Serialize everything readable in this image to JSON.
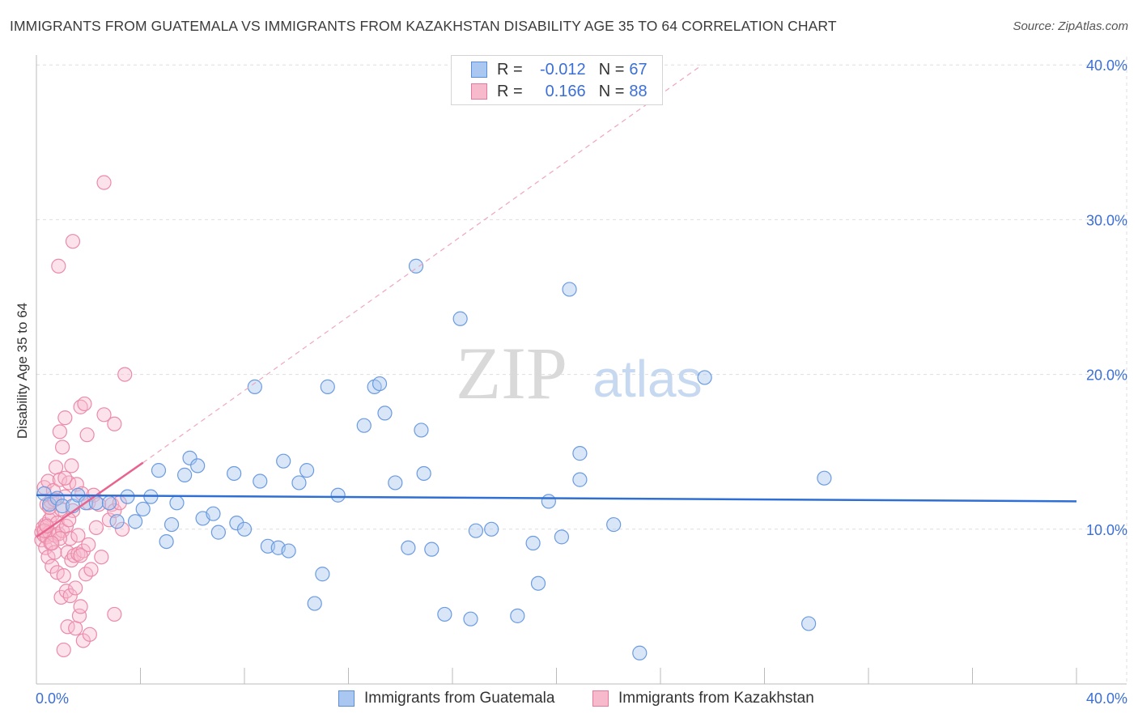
{
  "title": "IMMIGRANTS FROM GUATEMALA VS IMMIGRANTS FROM KAZAKHSTAN DISABILITY AGE 35 TO 64 CORRELATION CHART",
  "source": "Source: ZipAtlas.com",
  "watermark": {
    "zip": "ZIP",
    "atlas": "atlas"
  },
  "legend": {
    "r_label": "R =",
    "n_label": "N =",
    "rows": [
      {
        "name": "Immigrants from Guatemala",
        "r": "-0.012",
        "n": "67",
        "fill": "#a9c7f0",
        "stroke": "#5a8fd8"
      },
      {
        "name": "Immigrants from Kazakhstan",
        "r": "0.166",
        "n": "88",
        "fill": "#f7b9cc",
        "stroke": "#e5789c"
      }
    ]
  },
  "chart_data": {
    "type": "scatter",
    "title": "IMMIGRANTS FROM GUATEMALA VS IMMIGRANTS FROM KAZAKHSTAN DISABILITY AGE 35 TO 64 CORRELATION CHART",
    "xlabel": "",
    "ylabel": "Disability Age 35 to 64",
    "xlim": [
      0,
      40
    ],
    "ylim": [
      0,
      40
    ],
    "x_tick_labels": [
      "0.0%",
      "40.0%"
    ],
    "y_ticks": [
      10,
      20,
      30,
      40
    ],
    "y_tick_labels": [
      "10.0%",
      "20.0%",
      "30.0%",
      "40.0%"
    ],
    "grid": true,
    "legend_position": "top-center",
    "colors": {
      "guatemala": "#5a8fd8",
      "kazakhstan": "#e5789c",
      "trend_blue": "#2f6fd4",
      "trend_pink": "#e8648f"
    },
    "series": [
      {
        "name": "Immigrants from Guatemala",
        "color": "#5a8fd8",
        "trend": {
          "x": [
            0,
            40
          ],
          "y": [
            12.2,
            11.8
          ]
        },
        "points": [
          [
            0.3,
            12.3
          ],
          [
            0.5,
            11.6
          ],
          [
            0.8,
            12.0
          ],
          [
            1.0,
            11.5
          ],
          [
            1.4,
            11.5
          ],
          [
            1.6,
            12.2
          ],
          [
            1.9,
            11.7
          ],
          [
            2.3,
            11.7
          ],
          [
            2.8,
            11.7
          ],
          [
            3.1,
            10.5
          ],
          [
            3.5,
            12.1
          ],
          [
            3.8,
            10.5
          ],
          [
            4.1,
            11.3
          ],
          [
            4.4,
            12.1
          ],
          [
            4.7,
            13.8
          ],
          [
            5.0,
            9.2
          ],
          [
            5.2,
            10.3
          ],
          [
            5.7,
            13.5
          ],
          [
            5.9,
            14.6
          ],
          [
            6.2,
            14.1
          ],
          [
            6.4,
            10.7
          ],
          [
            6.8,
            11.0
          ],
          [
            7.0,
            9.8
          ],
          [
            7.6,
            13.6
          ],
          [
            7.7,
            10.4
          ],
          [
            8.0,
            10.0
          ],
          [
            8.4,
            19.2
          ],
          [
            8.6,
            13.1
          ],
          [
            8.9,
            8.9
          ],
          [
            9.3,
            8.8
          ],
          [
            9.5,
            14.4
          ],
          [
            9.7,
            8.6
          ],
          [
            10.1,
            13.0
          ],
          [
            10.4,
            13.8
          ],
          [
            10.7,
            5.2
          ],
          [
            11.0,
            7.1
          ],
          [
            11.2,
            19.2
          ],
          [
            11.6,
            12.2
          ],
          [
            12.6,
            16.7
          ],
          [
            13.0,
            19.2
          ],
          [
            13.2,
            19.4
          ],
          [
            13.4,
            17.5
          ],
          [
            13.8,
            13.0
          ],
          [
            14.3,
            8.8
          ],
          [
            14.6,
            27.0
          ],
          [
            14.8,
            16.4
          ],
          [
            14.9,
            13.6
          ],
          [
            15.2,
            8.7
          ],
          [
            15.7,
            4.5
          ],
          [
            16.3,
            23.6
          ],
          [
            16.7,
            4.2
          ],
          [
            16.9,
            9.9
          ],
          [
            17.5,
            10.0
          ],
          [
            18.5,
            4.4
          ],
          [
            19.1,
            9.1
          ],
          [
            19.3,
            6.5
          ],
          [
            19.7,
            11.8
          ],
          [
            20.2,
            9.5
          ],
          [
            20.5,
            25.5
          ],
          [
            20.9,
            14.9
          ],
          [
            20.9,
            13.2
          ],
          [
            22.2,
            10.3
          ],
          [
            23.2,
            2.0
          ],
          [
            25.7,
            19.8
          ],
          [
            29.7,
            3.9
          ],
          [
            30.3,
            13.3
          ],
          [
            5.4,
            11.7
          ]
        ]
      },
      {
        "name": "Immigrants from Kazakhstan",
        "color": "#e5789c",
        "trend": {
          "x": [
            0,
            4.1
          ],
          "y": [
            9.5,
            14.3
          ]
        },
        "trend_extension": {
          "x": [
            4.1,
            25.6
          ],
          "y": [
            14.3,
            40.0
          ]
        },
        "points": [
          [
            0.2,
            9.8
          ],
          [
            0.2,
            9.3
          ],
          [
            0.25,
            10.1
          ],
          [
            0.3,
            12.7
          ],
          [
            0.3,
            9.6
          ],
          [
            0.35,
            8.8
          ],
          [
            0.35,
            10.3
          ],
          [
            0.4,
            11.6
          ],
          [
            0.4,
            9.5
          ],
          [
            0.45,
            13.1
          ],
          [
            0.45,
            8.2
          ],
          [
            0.5,
            10.6
          ],
          [
            0.5,
            9.8
          ],
          [
            0.55,
            11.8
          ],
          [
            0.55,
            9.1
          ],
          [
            0.6,
            10.9
          ],
          [
            0.6,
            7.6
          ],
          [
            0.65,
            12.5
          ],
          [
            0.7,
            9.6
          ],
          [
            0.7,
            8.5
          ],
          [
            0.75,
            14.0
          ],
          [
            0.8,
            10.4
          ],
          [
            0.8,
            7.2
          ],
          [
            0.85,
            9.7
          ],
          [
            0.85,
            27.0
          ],
          [
            0.9,
            13.2
          ],
          [
            0.9,
            16.3
          ],
          [
            0.95,
            11.3
          ],
          [
            0.95,
            5.6
          ],
          [
            1.0,
            15.3
          ],
          [
            1.0,
            9.9
          ],
          [
            1.05,
            7.0
          ],
          [
            1.05,
            2.2
          ],
          [
            1.1,
            12.1
          ],
          [
            1.1,
            17.2
          ],
          [
            1.15,
            10.2
          ],
          [
            1.15,
            6.0
          ],
          [
            1.2,
            8.5
          ],
          [
            1.2,
            3.7
          ],
          [
            1.25,
            13.0
          ],
          [
            1.3,
            9.4
          ],
          [
            1.3,
            5.7
          ],
          [
            1.35,
            14.1
          ],
          [
            1.35,
            8.0
          ],
          [
            1.4,
            11.2
          ],
          [
            1.4,
            28.6
          ],
          [
            1.45,
            8.3
          ],
          [
            1.5,
            6.2
          ],
          [
            1.5,
            3.6
          ],
          [
            1.55,
            12.9
          ],
          [
            1.6,
            9.6
          ],
          [
            1.6,
            8.4
          ],
          [
            1.65,
            4.4
          ],
          [
            1.7,
            17.9
          ],
          [
            1.7,
            5.0
          ],
          [
            1.75,
            12.3
          ],
          [
            1.8,
            8.6
          ],
          [
            1.8,
            2.8
          ],
          [
            1.85,
            18.1
          ],
          [
            1.9,
            7.1
          ],
          [
            1.95,
            16.1
          ],
          [
            2.0,
            9.0
          ],
          [
            2.0,
            11.7
          ],
          [
            2.05,
            3.2
          ],
          [
            2.1,
            7.4
          ],
          [
            2.2,
            12.2
          ],
          [
            2.3,
            10.1
          ],
          [
            2.4,
            11.6
          ],
          [
            2.5,
            8.2
          ],
          [
            2.6,
            17.4
          ],
          [
            2.8,
            10.6
          ],
          [
            2.9,
            11.6
          ],
          [
            3.0,
            16.8
          ],
          [
            3.0,
            11.2
          ],
          [
            3.0,
            4.5
          ],
          [
            3.2,
            11.7
          ],
          [
            3.3,
            10.0
          ],
          [
            3.4,
            20.0
          ],
          [
            2.6,
            32.4
          ],
          [
            0.5,
            11.4
          ],
          [
            0.7,
            11.9
          ],
          [
            0.9,
            9.4
          ],
          [
            1.1,
            13.3
          ],
          [
            0.3,
            9.9
          ],
          [
            0.6,
            9.1
          ],
          [
            1.25,
            10.6
          ],
          [
            0.4,
            10.2
          ],
          [
            1.7,
            8.3
          ]
        ]
      }
    ]
  }
}
